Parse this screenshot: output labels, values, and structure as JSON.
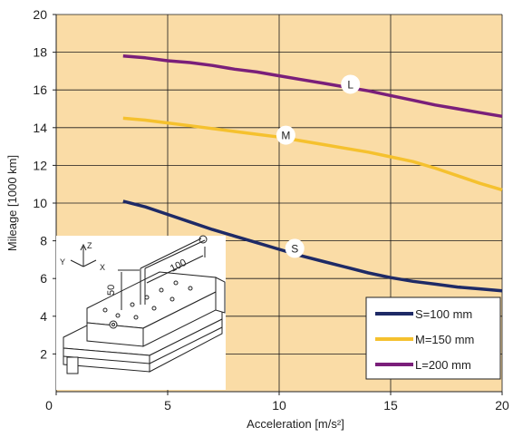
{
  "chart_data": {
    "type": "line",
    "xlabel": "Acceleration [m/s²]",
    "ylabel": "Mileage [1000 km]",
    "xlim": [
      0,
      20
    ],
    "ylim": [
      0,
      20
    ],
    "x_ticks": [
      0,
      5,
      10,
      15,
      20
    ],
    "y_ticks": [
      2,
      4,
      6,
      8,
      10,
      12,
      14,
      16,
      18,
      20
    ],
    "grid": true,
    "background_color": "#fadca6",
    "grid_color": "#1a1a1a",
    "legend_position": "bottom-right",
    "series": [
      {
        "name": "S=100 mm",
        "marker": "S",
        "color": "#1e2a66",
        "x": [
          3,
          4,
          5,
          6,
          7,
          8,
          9,
          10,
          11,
          12,
          13,
          14,
          15,
          16,
          17,
          18,
          19,
          20
        ],
        "y": [
          10.1,
          9.8,
          9.4,
          9.0,
          8.6,
          8.25,
          7.9,
          7.55,
          7.2,
          6.9,
          6.6,
          6.3,
          6.05,
          5.85,
          5.7,
          5.55,
          5.45,
          5.35
        ]
      },
      {
        "name": "M=150 mm",
        "marker": "M",
        "color": "#f5c12e",
        "x": [
          3,
          4,
          5,
          6,
          7,
          8,
          9,
          10,
          11,
          12,
          13,
          14,
          15,
          16,
          17,
          18,
          19,
          20
        ],
        "y": [
          14.5,
          14.4,
          14.25,
          14.1,
          13.95,
          13.8,
          13.65,
          13.5,
          13.3,
          13.1,
          12.9,
          12.7,
          12.45,
          12.2,
          11.85,
          11.45,
          11.05,
          10.7
        ]
      },
      {
        "name": "L=200 mm",
        "marker": "L",
        "color": "#7a1f7a",
        "x": [
          3,
          4,
          5,
          6,
          7,
          8,
          9,
          10,
          11,
          12,
          13,
          14,
          15,
          16,
          17,
          18,
          19,
          20
        ],
        "y": [
          17.8,
          17.7,
          17.55,
          17.45,
          17.3,
          17.1,
          16.95,
          16.75,
          16.55,
          16.35,
          16.15,
          15.95,
          15.7,
          15.45,
          15.2,
          15.0,
          14.8,
          14.6
        ]
      }
    ],
    "series_markers": [
      {
        "label": "S",
        "x": 10.7,
        "y": 7.6
      },
      {
        "label": "M",
        "x": 10.3,
        "y": 13.6
      },
      {
        "label": "L",
        "x": 13.2,
        "y": 16.3
      }
    ],
    "inset": {
      "dimensions": [
        "100",
        "50"
      ],
      "axis_labels": [
        "Z",
        "Y",
        "X"
      ]
    }
  }
}
